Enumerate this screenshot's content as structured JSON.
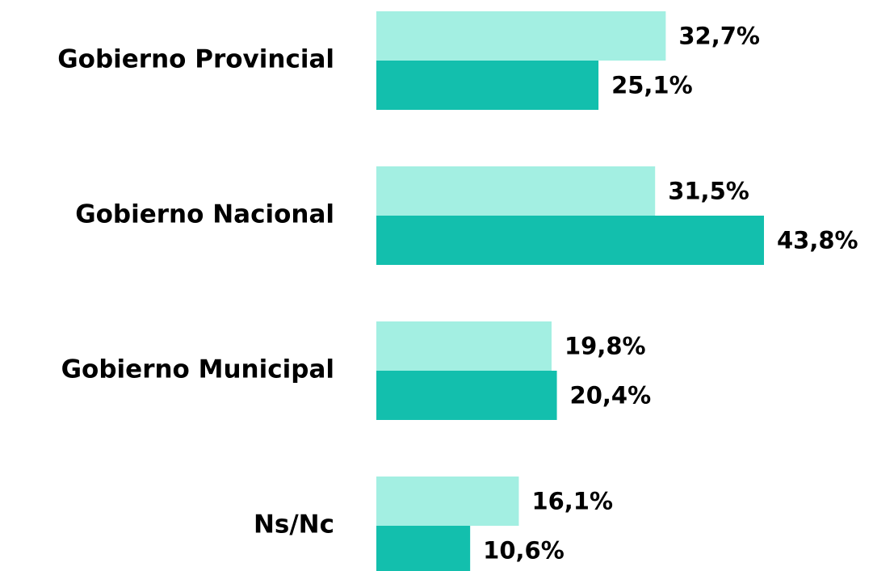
{
  "chart_data": {
    "type": "bar",
    "orientation": "horizontal",
    "categories": [
      "Gobierno Provincial",
      "Gobierno Nacional",
      "Gobierno Municipal",
      "Ns/Nc"
    ],
    "series": [
      {
        "color": "#a3efe2",
        "values": [
          32.7,
          31.5,
          19.8,
          16.1
        ],
        "value_labels": [
          "32,7%",
          "31,5%",
          "19,8%",
          "16,1%"
        ]
      },
      {
        "color": "#13bfad",
        "values": [
          25.1,
          43.8,
          20.4,
          10.6
        ],
        "value_labels": [
          "25,1%",
          "43,8%",
          "20,4%",
          "10,6%"
        ]
      }
    ]
  }
}
